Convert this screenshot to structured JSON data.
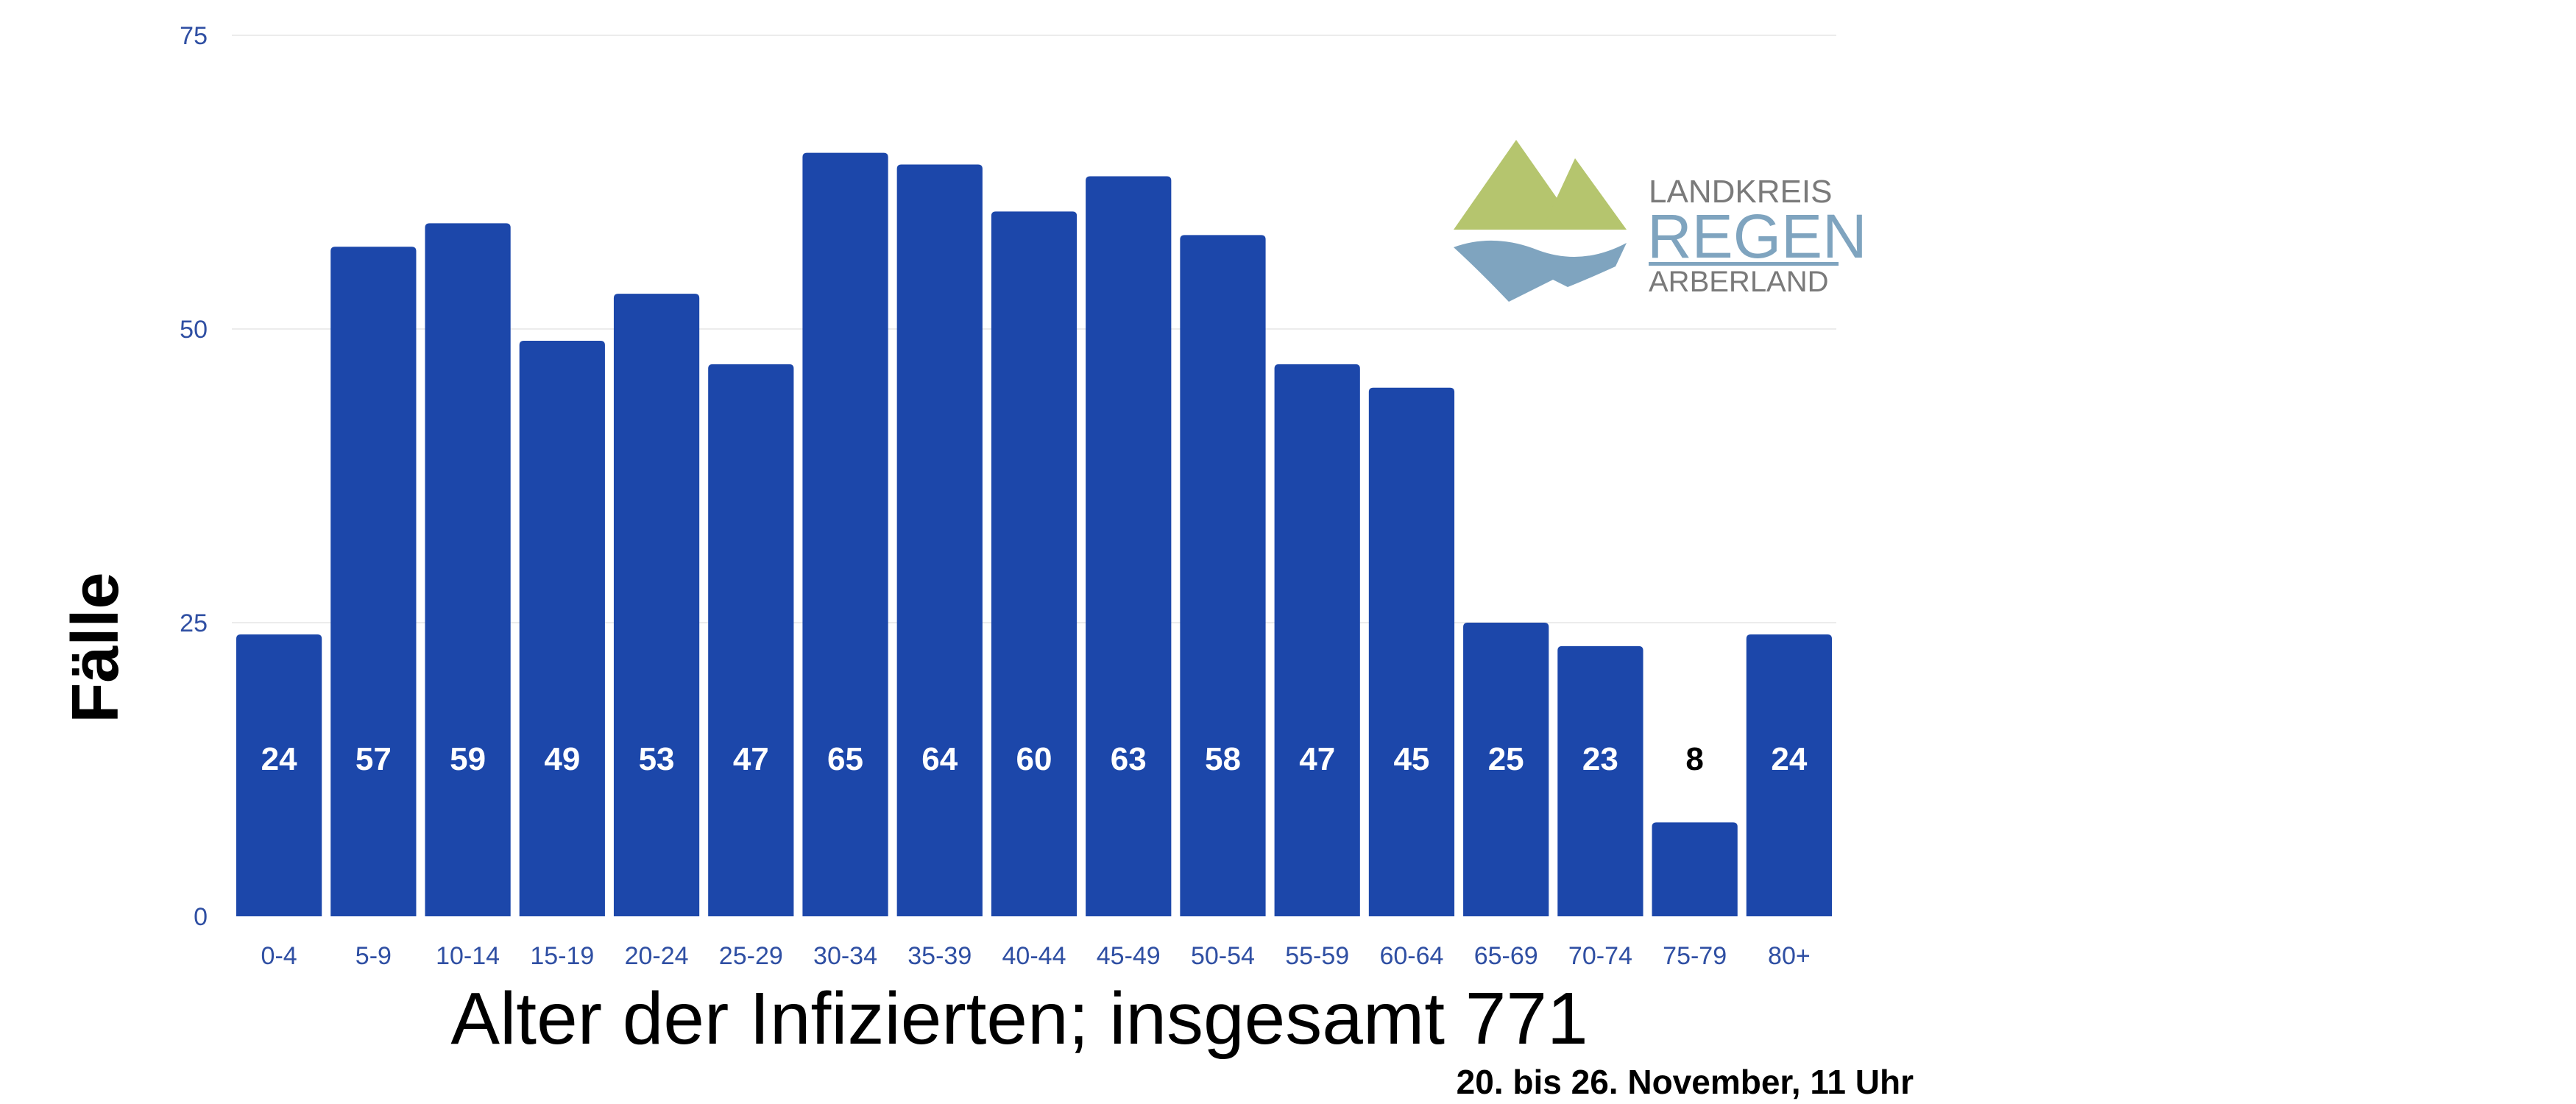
{
  "chart_data": {
    "type": "bar",
    "categories": [
      "0-4",
      "5-9",
      "10-14",
      "15-19",
      "20-24",
      "25-29",
      "30-34",
      "35-39",
      "40-44",
      "45-49",
      "50-54",
      "55-59",
      "60-64",
      "65-69",
      "70-74",
      "75-79",
      "80+"
    ],
    "values": [
      24,
      57,
      59,
      49,
      53,
      47,
      65,
      64,
      60,
      63,
      58,
      47,
      45,
      25,
      23,
      8,
      24
    ],
    "xlabel": "Alter der Infizierten; insgesamt 771",
    "ylabel": "Fälle",
    "subtitle": "20. bis 26. November, 11 Uhr",
    "ylim": [
      0,
      75
    ],
    "yticks": [
      0,
      25,
      50,
      75
    ],
    "grid": true,
    "legend": "none",
    "bar_color": "#1c47aa",
    "tick_color": "#2f4fa3",
    "label_color_inside": "#ffffff",
    "label_color_outside": "#000000"
  },
  "logo": {
    "line1": "LANDKREIS",
    "line2": "REGEN",
    "line3": "ARBERLAND",
    "mountain_color": "#b5c56e",
    "water_color": "#7fa4bf",
    "text_gray": "#7a7a7a",
    "text_blue": "#7fa4bf"
  }
}
